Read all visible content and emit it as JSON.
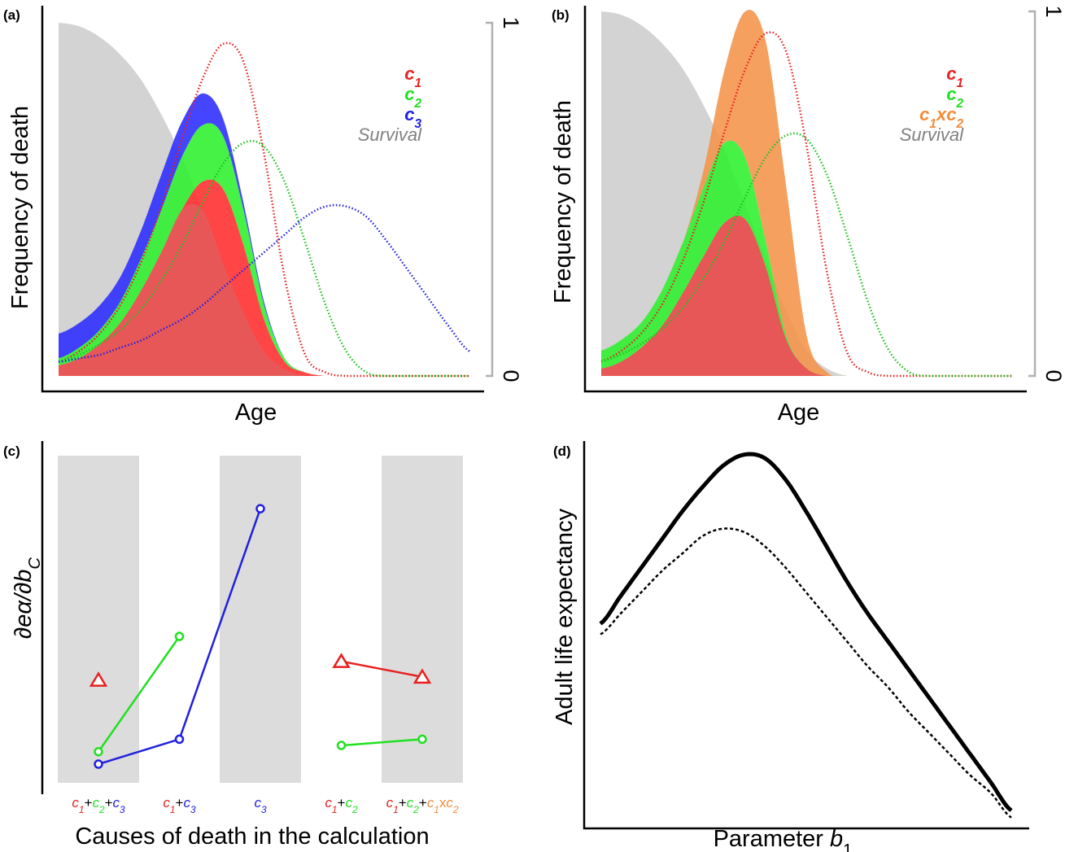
{
  "chart_data": [
    {
      "panel": "(a)",
      "type": "area",
      "xlabel": "Age",
      "ylabel": "Frequency of death",
      "right_axis_ticks": [
        "0",
        "1"
      ],
      "legend": [
        {
          "label": "c",
          "sub": "1",
          "color": "#e82020"
        },
        {
          "label": "c",
          "sub": "2",
          "color": "#20e020"
        },
        {
          "label": "c",
          "sub": "3",
          "color": "#2020e0"
        },
        {
          "label": "Survival",
          "sub": "",
          "color": "#808080"
        }
      ],
      "x": [
        0,
        0.05,
        0.1,
        0.15,
        0.2,
        0.25,
        0.3,
        0.35,
        0.4,
        0.45,
        0.5,
        0.55,
        0.6,
        0.65,
        0.7,
        0.75,
        0.8,
        0.85,
        0.9,
        0.95,
        1.0
      ],
      "survival": [
        1.0,
        0.99,
        0.96,
        0.91,
        0.84,
        0.74,
        0.62,
        0.47,
        0.32,
        0.18,
        0.07,
        0.02,
        0.0,
        0.0,
        0.0,
        0.0,
        0.0,
        0.0,
        0.0,
        0.0,
        0.0
      ],
      "stack_c1": [
        0.03,
        0.05,
        0.09,
        0.15,
        0.24,
        0.35,
        0.47,
        0.55,
        0.53,
        0.37,
        0.16,
        0.04,
        0.01,
        0.0,
        0.0,
        0.0,
        0.0,
        0.0,
        0.0,
        0.0,
        0.0
      ],
      "stack_c1_c2": [
        0.05,
        0.08,
        0.13,
        0.21,
        0.33,
        0.47,
        0.62,
        0.71,
        0.68,
        0.47,
        0.2,
        0.05,
        0.01,
        0.0,
        0.0,
        0.0,
        0.0,
        0.0,
        0.0,
        0.0,
        0.0
      ],
      "stack_c1_c2_c3": [
        0.12,
        0.15,
        0.2,
        0.28,
        0.41,
        0.57,
        0.72,
        0.8,
        0.73,
        0.49,
        0.21,
        0.05,
        0.01,
        0.0,
        0.0,
        0.0,
        0.0,
        0.0,
        0.0,
        0.0,
        0.0
      ],
      "c1_alone": [
        0.04,
        0.07,
        0.12,
        0.2,
        0.32,
        0.48,
        0.67,
        0.84,
        0.94,
        0.89,
        0.63,
        0.28,
        0.06,
        0.01,
        0.0,
        0.0,
        0.0,
        0.0,
        0.0,
        0.0,
        0.0
      ],
      "c2_alone": [
        0.04,
        0.06,
        0.09,
        0.13,
        0.19,
        0.27,
        0.37,
        0.49,
        0.6,
        0.66,
        0.65,
        0.55,
        0.38,
        0.2,
        0.07,
        0.01,
        0.0,
        0.0,
        0.0,
        0.0,
        0.0
      ],
      "c3_alone": [
        0.04,
        0.05,
        0.06,
        0.08,
        0.1,
        0.13,
        0.16,
        0.2,
        0.25,
        0.3,
        0.35,
        0.4,
        0.45,
        0.48,
        0.48,
        0.45,
        0.38,
        0.3,
        0.22,
        0.14,
        0.07
      ],
      "ylim": [
        0,
        1
      ]
    },
    {
      "panel": "(b)",
      "type": "area",
      "xlabel": "Age",
      "ylabel": "Frequency of death",
      "right_axis_ticks": [
        "0",
        "1"
      ],
      "legend": [
        {
          "label": "c",
          "sub": "1",
          "color": "#e82020"
        },
        {
          "label": "c",
          "sub": "2",
          "color": "#20e020"
        },
        {
          "label": "c1xc2",
          "sub": "",
          "color": "#f28c3c"
        },
        {
          "label": "Survival",
          "sub": "",
          "color": "#808080"
        }
      ],
      "x": [
        0,
        0.05,
        0.1,
        0.15,
        0.2,
        0.25,
        0.3,
        0.35,
        0.4,
        0.45,
        0.5,
        0.55,
        0.6,
        0.65,
        0.7,
        0.75,
        0.8,
        0.85,
        0.9,
        0.95,
        1.0
      ],
      "survival": [
        1.0,
        0.99,
        0.96,
        0.91,
        0.84,
        0.74,
        0.62,
        0.47,
        0.32,
        0.18,
        0.07,
        0.02,
        0.0,
        0.0,
        0.0,
        0.0,
        0.0,
        0.0,
        0.0,
        0.0,
        0.0
      ],
      "stack_c1": [
        0.02,
        0.04,
        0.08,
        0.14,
        0.23,
        0.33,
        0.42,
        0.43,
        0.3,
        0.1,
        0.02,
        0.0,
        0.0,
        0.0,
        0.0,
        0.0,
        0.0,
        0.0,
        0.0,
        0.0,
        0.0
      ],
      "stack_c1_c2": [
        0.07,
        0.1,
        0.15,
        0.24,
        0.37,
        0.52,
        0.64,
        0.6,
        0.37,
        0.11,
        0.02,
        0.0,
        0.0,
        0.0,
        0.0,
        0.0,
        0.0,
        0.0,
        0.0,
        0.0,
        0.0
      ],
      "stack_c1_c2_c1xc2": [
        0.07,
        0.1,
        0.15,
        0.24,
        0.37,
        0.57,
        0.84,
        1.0,
        0.92,
        0.52,
        0.11,
        0.01,
        0.0,
        0.0,
        0.0,
        0.0,
        0.0,
        0.0,
        0.0,
        0.0,
        0.0
      ],
      "c1_alone": [
        0.04,
        0.07,
        0.12,
        0.2,
        0.32,
        0.48,
        0.67,
        0.84,
        0.94,
        0.89,
        0.63,
        0.28,
        0.06,
        0.01,
        0.0,
        0.0,
        0.0,
        0.0,
        0.0,
        0.0,
        0.0
      ],
      "c2_alone": [
        0.04,
        0.06,
        0.09,
        0.13,
        0.19,
        0.27,
        0.37,
        0.49,
        0.6,
        0.66,
        0.65,
        0.55,
        0.38,
        0.2,
        0.07,
        0.01,
        0.0,
        0.0,
        0.0,
        0.0,
        0.0
      ],
      "ylim": [
        0,
        1
      ]
    },
    {
      "panel": "(c)",
      "type": "scatter",
      "xlabel": "Causes of death in the calculation",
      "ylabel": "∂eα/∂b",
      "ylabel_sub": "C",
      "categories": [
        {
          "parts": [
            {
              "t": "c",
              "s": "1",
              "c": "#e82020"
            },
            {
              "t": "+",
              "s": "",
              "c": "#000000"
            },
            {
              "t": "c",
              "s": "2",
              "c": "#20e020"
            },
            {
              "t": "+",
              "s": "",
              "c": "#000000"
            },
            {
              "t": "c",
              "s": "3",
              "c": "#2020e0"
            }
          ],
          "shaded": true
        },
        {
          "parts": [
            {
              "t": "c",
              "s": "1",
              "c": "#e82020"
            },
            {
              "t": "+",
              "s": "",
              "c": "#000000"
            },
            {
              "t": "c",
              "s": "3",
              "c": "#2020e0"
            }
          ],
          "shaded": false
        },
        {
          "parts": [
            {
              "t": "c",
              "s": "3",
              "c": "#2020e0"
            }
          ],
          "shaded": true
        },
        {
          "parts": [
            {
              "t": "c",
              "s": "1",
              "c": "#e82020"
            },
            {
              "t": "+",
              "s": "",
              "c": "#000000"
            },
            {
              "t": "c",
              "s": "2",
              "c": "#20e020"
            }
          ],
          "shaded": false
        },
        {
          "parts": [
            {
              "t": "c",
              "s": "1",
              "c": "#e82020"
            },
            {
              "t": "+",
              "s": "",
              "c": "#000000"
            },
            {
              "t": "c",
              "s": "2",
              "c": "#20e020"
            },
            {
              "t": "+",
              "s": "",
              "c": "#000000"
            },
            {
              "t": "c",
              "s": "1",
              "c": "#f28c3c"
            },
            {
              "t": "x",
              "s": "",
              "c": "#f28c3c"
            },
            {
              "t": "c",
              "s": "2",
              "c": "#f28c3c"
            }
          ],
          "shaded": true
        }
      ],
      "series": [
        {
          "marker": "triangle",
          "color": "#e82020",
          "segments": [
            [
              [
                0,
                0.28
              ]
            ],
            [
              [
                3,
                0.34
              ],
              [
                4,
                0.29
              ]
            ]
          ]
        },
        {
          "marker": "circle",
          "color": "#20e020",
          "segments": [
            [
              [
                0,
                0.05
              ],
              [
                1,
                0.42
              ]
            ],
            [
              [
                3,
                0.07
              ],
              [
                4,
                0.09
              ]
            ]
          ]
        },
        {
          "marker": "circle",
          "color": "#2020e0",
          "segments": [
            [
              [
                0,
                0.01
              ],
              [
                1,
                0.09
              ],
              [
                2,
                0.83
              ]
            ]
          ]
        }
      ],
      "ylim": [
        -0.05,
        1.0
      ]
    },
    {
      "panel": "(d)",
      "type": "line",
      "xlabel": "Parameter b",
      "xlabel_sub": "1",
      "ylabel": "Adult life expectancy",
      "x": [
        0,
        0.05,
        0.1,
        0.15,
        0.2,
        0.25,
        0.3,
        0.35,
        0.4,
        0.45,
        0.5,
        0.55,
        0.6,
        0.65,
        0.7,
        0.75,
        0.8,
        0.85,
        0.9,
        0.95,
        1.0
      ],
      "series": [
        {
          "style": "solid",
          "values": [
            0.53,
            0.61,
            0.69,
            0.77,
            0.85,
            0.92,
            0.98,
            1.01,
            1.0,
            0.94,
            0.85,
            0.75,
            0.65,
            0.56,
            0.48,
            0.4,
            0.32,
            0.24,
            0.16,
            0.08,
            0.0
          ]
        },
        {
          "style": "dashed",
          "values": [
            0.5,
            0.56,
            0.62,
            0.68,
            0.73,
            0.78,
            0.8,
            0.79,
            0.75,
            0.69,
            0.62,
            0.55,
            0.48,
            0.41,
            0.35,
            0.28,
            0.22,
            0.16,
            0.1,
            0.05,
            -0.02
          ]
        }
      ]
    }
  ]
}
